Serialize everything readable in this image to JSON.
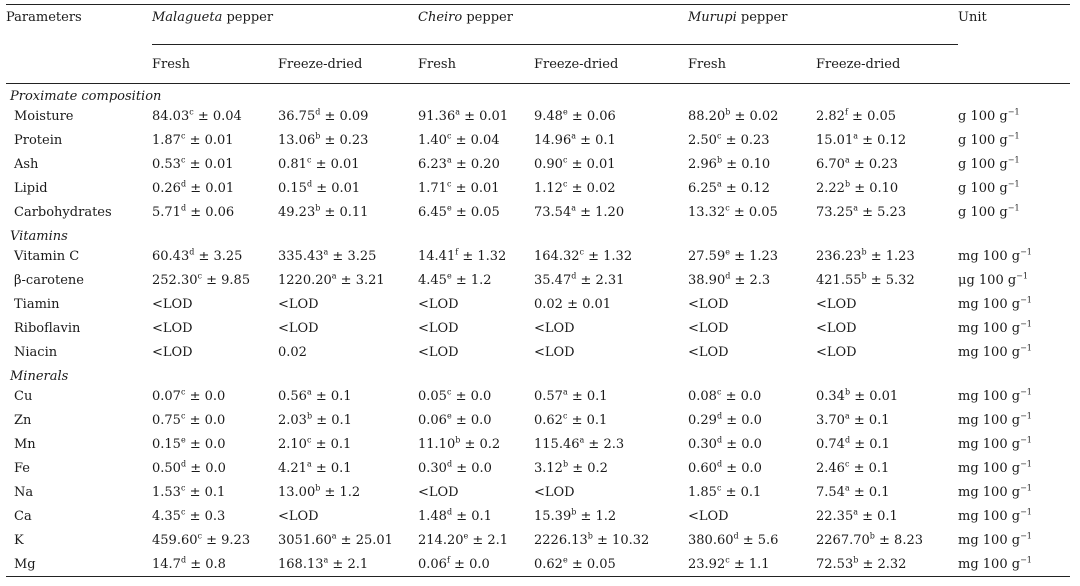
{
  "header": {
    "parameters": "Parameters",
    "unit": "Unit",
    "groups": [
      {
        "name_italic": "Malagueta",
        "name_rest": " pepper"
      },
      {
        "name_italic": "Cheiro",
        "name_rest": " pepper"
      },
      {
        "name_italic": "Murupi",
        "name_rest": " pepper"
      }
    ],
    "subcols": [
      "Fresh",
      "Freeze-dried",
      "Fresh",
      "Freeze-dried",
      "Fresh",
      "Freeze-dried"
    ]
  },
  "sections": [
    {
      "title": "Proximate composition",
      "rows": [
        {
          "param": "Moisture",
          "cells": [
            {
              "v": "84.03",
              "s": "c",
              "e": " ± 0.04"
            },
            {
              "v": "36.75",
              "s": "d",
              "e": " ± 0.09"
            },
            {
              "v": "91.36",
              "s": "a",
              "e": " ± 0.01"
            },
            {
              "v": "9.48",
              "s": "e",
              "e": " ± 0.06"
            },
            {
              "v": "88.20",
              "s": "b",
              "e": " ± 0.02"
            },
            {
              "v": "2.82",
              "s": "f",
              "e": " ± 0.05"
            }
          ],
          "unit": {
            "t": "g 100 g",
            "s": "−1"
          }
        },
        {
          "param": "Protein",
          "cells": [
            {
              "v": "1.87",
              "s": "c",
              "e": " ± 0.01"
            },
            {
              "v": "13.06",
              "s": "b",
              "e": " ± 0.23"
            },
            {
              "v": "1.40",
              "s": "c",
              "e": " ± 0.04"
            },
            {
              "v": "14.96",
              "s": "a",
              "e": " ± 0.1"
            },
            {
              "v": "2.50",
              "s": "c",
              "e": " ± 0.23"
            },
            {
              "v": "15.01",
              "s": "a",
              "e": " ± 0.12"
            }
          ],
          "unit": {
            "t": "g 100 g",
            "s": "−1"
          }
        },
        {
          "param": "Ash",
          "cells": [
            {
              "v": "0.53",
              "s": "c",
              "e": " ± 0.01"
            },
            {
              "v": "0.81",
              "s": "c",
              "e": " ± 0.01"
            },
            {
              "v": "6.23",
              "s": "a",
              "e": " ± 0.20"
            },
            {
              "v": "0.90",
              "s": "c",
              "e": " ± 0.01"
            },
            {
              "v": "2.96",
              "s": "b",
              "e": " ± 0.10"
            },
            {
              "v": "6.70",
              "s": "a",
              "e": " ± 0.23"
            }
          ],
          "unit": {
            "t": "g 100 g",
            "s": "−1"
          }
        },
        {
          "param": "Lipid",
          "cells": [
            {
              "v": "0.26",
              "s": "d",
              "e": " ± 0.01"
            },
            {
              "v": "0.15",
              "s": "d",
              "e": " ± 0.01"
            },
            {
              "v": "1.71",
              "s": "c",
              "e": " ± 0.01"
            },
            {
              "v": "1.12",
              "s": "c",
              "e": " ± 0.02"
            },
            {
              "v": "6.25",
              "s": "a",
              "e": " ± 0.12"
            },
            {
              "v": "2.22",
              "s": "b",
              "e": " ± 0.10"
            }
          ],
          "unit": {
            "t": "g 100 g",
            "s": "−1"
          }
        },
        {
          "param": "Carbohydrates",
          "cells": [
            {
              "v": "5.71",
              "s": "d",
              "e": " ± 0.06"
            },
            {
              "v": "49.23",
              "s": "b",
              "e": " ± 0.11"
            },
            {
              "v": "6.45",
              "s": "e",
              "e": " ± 0.05"
            },
            {
              "v": "73.54",
              "s": "a",
              "e": " ± 1.20"
            },
            {
              "v": "13.32",
              "s": "c",
              "e": " ± 0.05"
            },
            {
              "v": "73.25",
              "s": "a",
              "e": " ± 5.23"
            }
          ],
          "unit": {
            "t": "g 100 g",
            "s": "−1"
          }
        }
      ]
    },
    {
      "title": "Vitamins",
      "rows": [
        {
          "param": "Vitamin C",
          "cells": [
            {
              "v": "60.43",
              "s": "d",
              "e": " ± 3.25"
            },
            {
              "v": "335.43",
              "s": "a",
              "e": " ± 3.25"
            },
            {
              "v": "14.41",
              "s": "f",
              "e": " ± 1.32"
            },
            {
              "v": "164.32",
              "s": "c",
              "e": " ± 1.32"
            },
            {
              "v": "27.59",
              "s": "e",
              "e": " ± 1.23"
            },
            {
              "v": "236.23",
              "s": "b",
              "e": " ± 1.23"
            }
          ],
          "unit": {
            "t": "mg 100 g",
            "s": "−1"
          }
        },
        {
          "param": "β-carotene",
          "cells": [
            {
              "v": "252.30",
              "s": "c",
              "e": " ± 9.85"
            },
            {
              "v": "1220.20",
              "s": "a",
              "e": " ± 3.21"
            },
            {
              "v": "4.45",
              "s": "e",
              "e": " ± 1.2"
            },
            {
              "v": "35.47",
              "s": "d",
              "e": " ± 2.31"
            },
            {
              "v": "38.90",
              "s": "d",
              "e": " ± 2.3"
            },
            {
              "v": "421.55",
              "s": "b",
              "e": " ± 5.32"
            }
          ],
          "unit": {
            "t": "μg 100 g",
            "s": "−1"
          }
        },
        {
          "param": "Tiamin",
          "cells": [
            {
              "v": "<LOD",
              "s": "",
              "e": ""
            },
            {
              "v": "<LOD",
              "s": "",
              "e": ""
            },
            {
              "v": "<LOD",
              "s": "",
              "e": ""
            },
            {
              "v": "0.02",
              "s": "",
              "e": " ± 0.01"
            },
            {
              "v": "<LOD",
              "s": "",
              "e": ""
            },
            {
              "v": "<LOD",
              "s": "",
              "e": ""
            }
          ],
          "unit": {
            "t": "mg 100 g",
            "s": "−1"
          }
        },
        {
          "param": "Riboflavin",
          "cells": [
            {
              "v": "<LOD",
              "s": "",
              "e": ""
            },
            {
              "v": "<LOD",
              "s": "",
              "e": ""
            },
            {
              "v": "<LOD",
              "s": "",
              "e": ""
            },
            {
              "v": "<LOD",
              "s": "",
              "e": ""
            },
            {
              "v": "<LOD",
              "s": "",
              "e": ""
            },
            {
              "v": "<LOD",
              "s": "",
              "e": ""
            }
          ],
          "unit": {
            "t": "mg 100 g",
            "s": "−1"
          }
        },
        {
          "param": "Niacin",
          "cells": [
            {
              "v": "<LOD",
              "s": "",
              "e": ""
            },
            {
              "v": "0.02",
              "s": "",
              "e": ""
            },
            {
              "v": "<LOD",
              "s": "",
              "e": ""
            },
            {
              "v": "<LOD",
              "s": "",
              "e": ""
            },
            {
              "v": "<LOD",
              "s": "",
              "e": ""
            },
            {
              "v": "<LOD",
              "s": "",
              "e": ""
            }
          ],
          "unit": {
            "t": "mg 100 g",
            "s": "−1"
          }
        }
      ]
    },
    {
      "title": "Minerals",
      "rows": [
        {
          "param": "Cu",
          "cells": [
            {
              "v": "0.07",
              "s": "c",
              "e": " ± 0.0"
            },
            {
              "v": "0.56",
              "s": "a",
              "e": " ± 0.1"
            },
            {
              "v": "0.05",
              "s": "c",
              "e": " ± 0.0"
            },
            {
              "v": "0.57",
              "s": "a",
              "e": " ± 0.1"
            },
            {
              "v": "0.08",
              "s": "c",
              "e": " ± 0.0"
            },
            {
              "v": "0.34",
              "s": "b",
              "e": " ± 0.01"
            }
          ],
          "unit": {
            "t": "mg 100 g",
            "s": "−1"
          }
        },
        {
          "param": "Zn",
          "cells": [
            {
              "v": "0.75",
              "s": "c",
              "e": " ± 0.0"
            },
            {
              "v": "2.03",
              "s": "b",
              "e": " ± 0.1"
            },
            {
              "v": "0.06",
              "s": "e",
              "e": " ± 0.0"
            },
            {
              "v": "0.62",
              "s": "c",
              "e": " ± 0.1"
            },
            {
              "v": "0.29",
              "s": "d",
              "e": " ± 0.0"
            },
            {
              "v": "3.70",
              "s": "a",
              "e": " ± 0.1"
            }
          ],
          "unit": {
            "t": "mg 100 g",
            "s": "−1"
          }
        },
        {
          "param": "Mn",
          "cells": [
            {
              "v": "0.15",
              "s": "e",
              "e": " ± 0.0"
            },
            {
              "v": "2.10",
              "s": "c",
              "e": " ± 0.1"
            },
            {
              "v": "11.10",
              "s": "b",
              "e": " ± 0.2"
            },
            {
              "v": "115.46",
              "s": "a",
              "e": " ± 2.3"
            },
            {
              "v": "0.30",
              "s": "d",
              "e": " ± 0.0"
            },
            {
              "v": "0.74",
              "s": "d",
              "e": " ± 0.1"
            }
          ],
          "unit": {
            "t": "mg 100 g",
            "s": "−1"
          }
        },
        {
          "param": "Fe",
          "cells": [
            {
              "v": "0.50",
              "s": "d",
              "e": " ± 0.0"
            },
            {
              "v": "4.21",
              "s": "a",
              "e": " ± 0.1"
            },
            {
              "v": "0.30",
              "s": "d",
              "e": " ± 0.0"
            },
            {
              "v": "3.12",
              "s": "b",
              "e": " ± 0.2"
            },
            {
              "v": "0.60",
              "s": "d",
              "e": " ± 0.0"
            },
            {
              "v": "2.46",
              "s": "c",
              "e": " ± 0.1"
            }
          ],
          "unit": {
            "t": "mg 100 g",
            "s": "−1"
          }
        },
        {
          "param": "Na",
          "cells": [
            {
              "v": "1.53",
              "s": "c",
              "e": " ± 0.1"
            },
            {
              "v": "13.00",
              "s": "b",
              "e": " ± 1.2"
            },
            {
              "v": "<LOD",
              "s": "",
              "e": ""
            },
            {
              "v": "<LOD",
              "s": "",
              "e": ""
            },
            {
              "v": "1.85",
              "s": "c",
              "e": " ± 0.1"
            },
            {
              "v": "7.54",
              "s": "a",
              "e": " ± 0.1"
            }
          ],
          "unit": {
            "t": "mg 100 g",
            "s": "−1"
          }
        },
        {
          "param": "Ca",
          "cells": [
            {
              "v": "4.35",
              "s": "c",
              "e": " ± 0.3"
            },
            {
              "v": "<LOD",
              "s": "",
              "e": ""
            },
            {
              "v": "1.48",
              "s": "d",
              "e": " ± 0.1"
            },
            {
              "v": "15.39",
              "s": "b",
              "e": " ± 1.2"
            },
            {
              "v": "<LOD",
              "s": "",
              "e": ""
            },
            {
              "v": "22.35",
              "s": "a",
              "e": " ± 0.1"
            }
          ],
          "unit": {
            "t": "mg 100 g",
            "s": "−1"
          }
        },
        {
          "param": "K",
          "cells": [
            {
              "v": "459.60",
              "s": "c",
              "e": " ± 9.23"
            },
            {
              "v": "3051.60",
              "s": "a",
              "e": " ± 25.01"
            },
            {
              "v": "214.20",
              "s": "e",
              "e": " ± 2.1"
            },
            {
              "v": "2226.13",
              "s": "b",
              "e": " ± 10.32"
            },
            {
              "v": "380.60",
              "s": "d",
              "e": " ± 5.6"
            },
            {
              "v": "2267.70",
              "s": "b",
              "e": " ± 8.23"
            }
          ],
          "unit": {
            "t": "mg 100 g",
            "s": "−1"
          }
        },
        {
          "param": "Mg",
          "cells": [
            {
              "v": "14.7",
              "s": "d",
              "e": " ± 0.8"
            },
            {
              "v": "168.13",
              "s": "a",
              "e": " ± 2.1"
            },
            {
              "v": "0.06",
              "s": "f",
              "e": " ± 0.0"
            },
            {
              "v": "0.62",
              "s": "e",
              "e": " ± 0.05"
            },
            {
              "v": "23.92",
              "s": "c",
              "e": " ± 1.1"
            },
            {
              "v": "72.53",
              "s": "b",
              "e": " ± 2.32"
            }
          ],
          "unit": {
            "t": "mg 100 g",
            "s": "−1"
          }
        }
      ]
    }
  ]
}
